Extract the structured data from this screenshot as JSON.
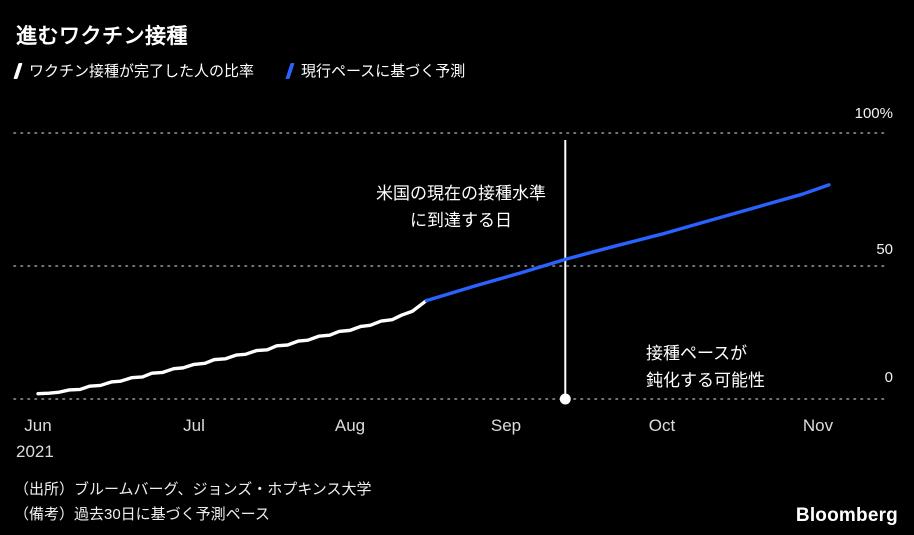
{
  "title": "進むワクチン接種",
  "legend": {
    "actual_label": "ワクチン接種が完了した人の比率",
    "forecast_label": "現行ペースに基づく予測"
  },
  "annotations": {
    "reach_line1": "米国の現在の接種水準",
    "reach_line2": "に到達する日",
    "slow_line1": "接種ペースが",
    "slow_line2": "鈍化する可能性"
  },
  "axis": {
    "y_ticks": [
      "100%",
      "50",
      "0"
    ],
    "x_ticks": [
      "Jun",
      "Jul",
      "Aug",
      "Sep",
      "Oct",
      "Nov"
    ],
    "year": "2021"
  },
  "footer": {
    "source": "（出所）ブルームバーグ、ジョンズ・ホプキンス大学",
    "note": "（備考）過去30日に基づく予測ペース",
    "brand": "Bloomberg"
  },
  "colors": {
    "background": "#000000",
    "actual": "#ffffff",
    "forecast": "#2962ff",
    "grid": "#9b9b9b",
    "vline": "#ffffff"
  },
  "chart_data": {
    "type": "line",
    "title": "進むワクチン接種",
    "x_unit": "months since Jun 2021",
    "xlim": [
      0,
      5.45
    ],
    "ylim": [
      0,
      100
    ],
    "x_tick_positions": [
      0,
      1,
      2,
      3,
      4,
      5
    ],
    "x_tick_labels": [
      "Jun",
      "Jul",
      "Aug",
      "Sep",
      "Oct",
      "Nov"
    ],
    "y_tick_positions": [
      0,
      50,
      100
    ],
    "y_tick_labels": [
      "0",
      "50",
      "100%"
    ],
    "grid": "dotted horizontal",
    "legend_position": "top-left",
    "vline_x": 3.38,
    "vline_label": "米国の現在の接種水準に到達する日",
    "series": [
      {
        "name": "ワクチン接種が完了した人の比率",
        "color": "#ffffff",
        "x": [
          0.0,
          0.07,
          0.13,
          0.2,
          0.27,
          0.33,
          0.4,
          0.47,
          0.53,
          0.6,
          0.67,
          0.73,
          0.8,
          0.87,
          0.93,
          1.0,
          1.07,
          1.13,
          1.2,
          1.27,
          1.33,
          1.4,
          1.47,
          1.53,
          1.6,
          1.67,
          1.73,
          1.8,
          1.87,
          1.93,
          2.0,
          2.07,
          2.13,
          2.2,
          2.27,
          2.33,
          2.4,
          2.49
        ],
        "y": [
          2.0,
          2.2,
          2.5,
          3.4,
          3.6,
          4.8,
          5.1,
          6.4,
          6.7,
          8.0,
          8.3,
          9.7,
          10.0,
          11.4,
          11.7,
          13.0,
          13.4,
          14.8,
          15.1,
          16.5,
          16.8,
          18.2,
          18.5,
          20.0,
          20.3,
          21.8,
          22.1,
          23.6,
          24.0,
          25.4,
          25.8,
          27.3,
          27.7,
          29.3,
          29.8,
          31.5,
          33.0,
          37.0
        ]
      },
      {
        "name": "現行ペースに基づく予測",
        "color": "#2962ff",
        "x": [
          2.49,
          2.8,
          3.1,
          3.38,
          3.7,
          4.0,
          4.3,
          4.6,
          4.9,
          5.07
        ],
        "y": [
          37.0,
          42.5,
          47.5,
          52.5,
          57.5,
          62.0,
          67.0,
          72.0,
          77.0,
          80.5
        ]
      }
    ]
  }
}
